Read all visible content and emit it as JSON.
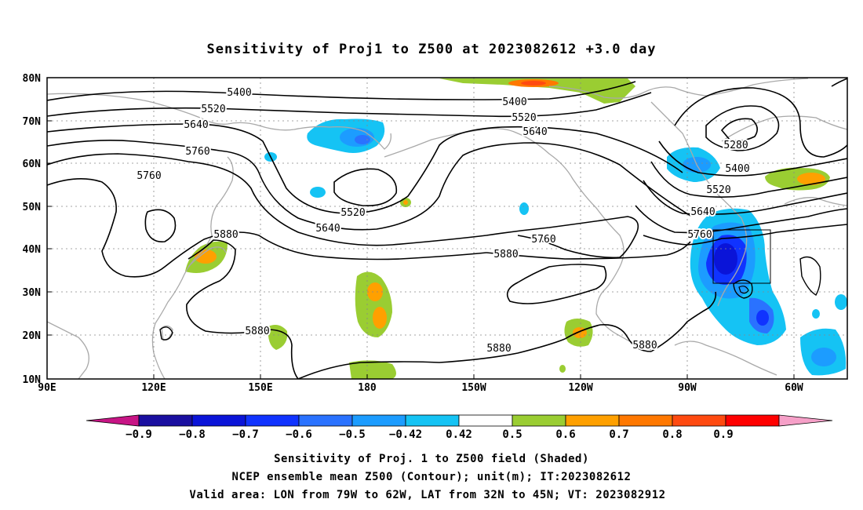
{
  "title": "Sensitivity of Proj1 to Z500 at 2023082612 +3.0 day",
  "map": {
    "lat_labels": [
      "80N",
      "70N",
      "60N",
      "50N",
      "40N",
      "30N",
      "20N",
      "10N"
    ],
    "lon_labels": [
      "90E",
      "120E",
      "150E",
      "180",
      "150W",
      "120W",
      "90W",
      "60W"
    ],
    "contour_labels": {
      "c5400a": "5400",
      "c5520a": "5520",
      "c5640a": "5640",
      "c5760a": "5760",
      "c5760b": "5760",
      "c5880a": "5880",
      "c5880b": "5880",
      "c5400b": "5400",
      "c5520b": "5520",
      "c5640b": "5640",
      "c5520c": "5520",
      "c5640c": "5640",
      "c5760c": "5760",
      "c5880c": "5880",
      "c5880d": "5880",
      "c5880e": "5880",
      "c5280": "5280",
      "c5400c": "5400",
      "c5520d": "5520",
      "c5640d": "5640",
      "c5760d": "5760"
    }
  },
  "colorbar": {
    "labels": [
      "−0.9",
      "−0.8",
      "−0.7",
      "−0.6",
      "−0.5",
      "−0.42",
      "0.42",
      "0.5",
      "0.6",
      "0.7",
      "0.8",
      "0.9"
    ],
    "colors": [
      "#c71585",
      "#1a0fa0",
      "#0a14d8",
      "#1033ff",
      "#2a72ff",
      "#1c9cff",
      "#15c3f4",
      "#ffffff",
      "#9acd32",
      "#ffa000",
      "#ff7800",
      "#ff4a10",
      "#ff0000",
      "#f6a0c8"
    ]
  },
  "caption": {
    "line1": "Sensitivity of Proj. 1 to Z500 field (Shaded)",
    "line2": "NCEP ensemble mean Z500 (Contour); unit(m); IT:2023082612",
    "line3": "Valid area: LON from 79W to 62W, LAT from 32N to 45N; VT: 2023082912"
  }
}
